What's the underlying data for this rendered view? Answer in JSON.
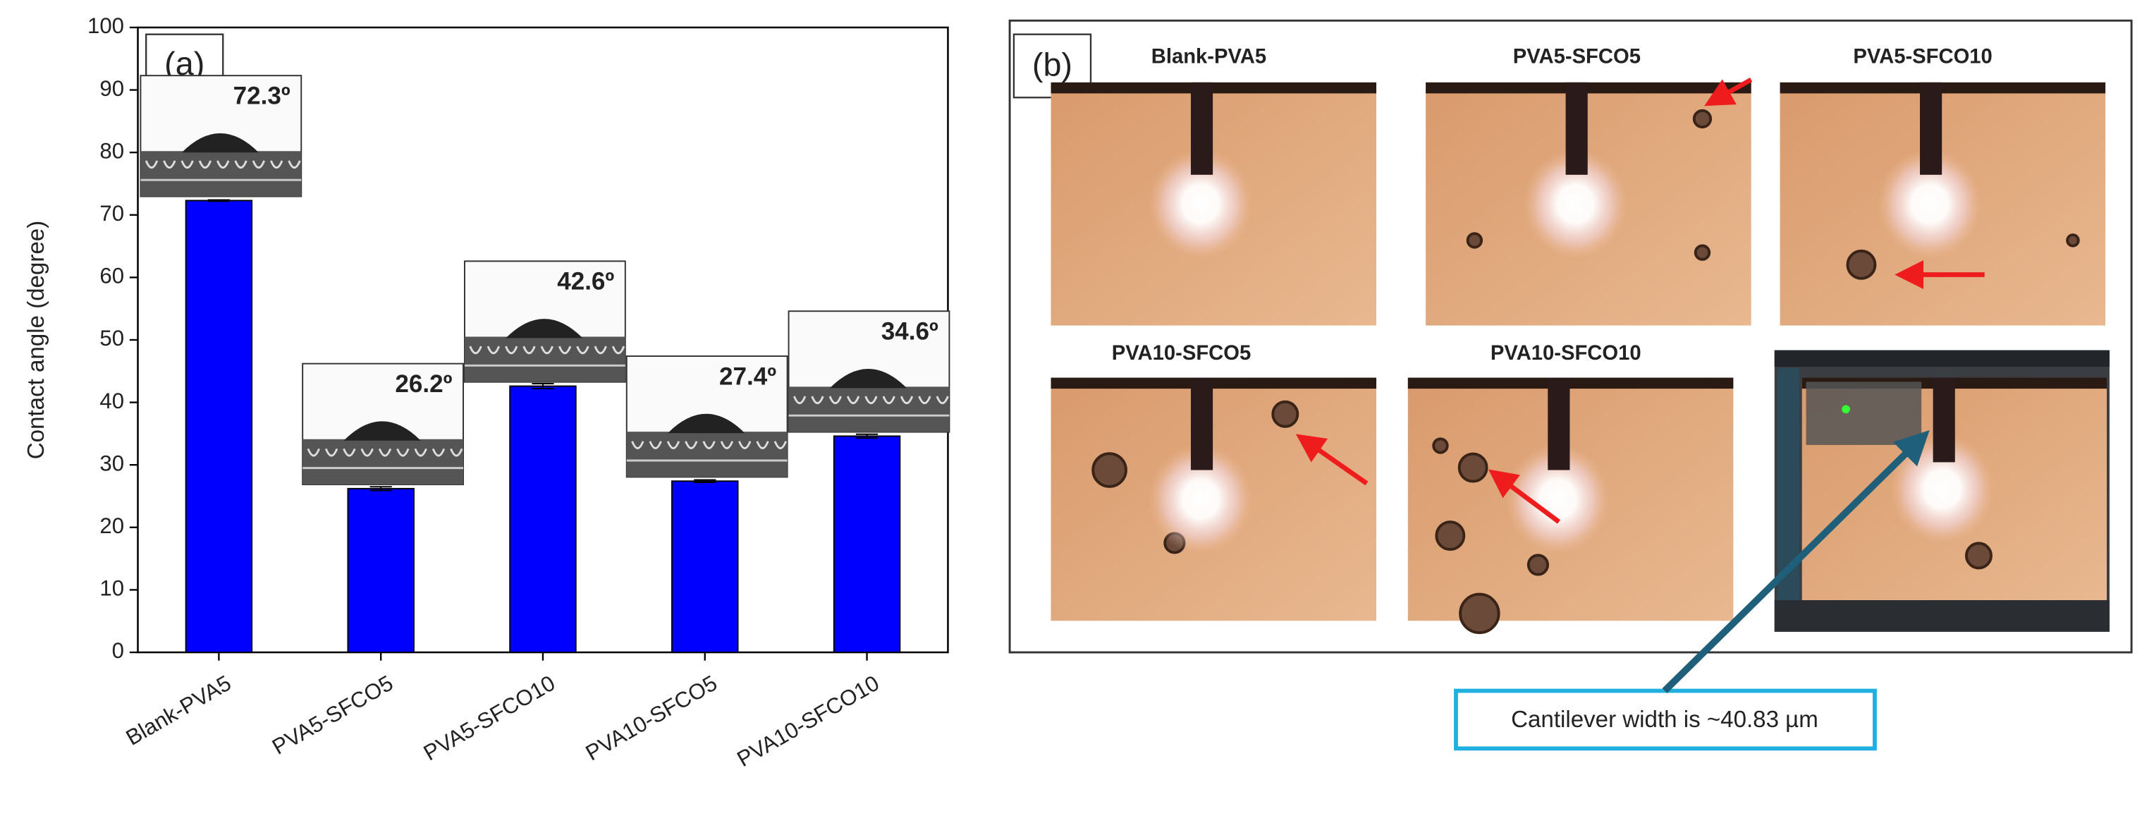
{
  "chart_data": {
    "type": "bar",
    "panel_label": "(a)",
    "y_label": "Contact angle (degree)",
    "categories": [
      "Blank-PVA5",
      "PVA5-SFCO5",
      "PVA5-SFCO10",
      "PVA10-SFCO5",
      "PVA10-SFCO10"
    ],
    "values": [
      72.3,
      26.2,
      42.6,
      27.4,
      34.6
    ],
    "value_labels": [
      "72.3º",
      "26.2º",
      "42.6º",
      "27.4º",
      "34.6º"
    ],
    "errors": [
      0.1,
      0.3,
      0.4,
      0.2,
      0.3
    ],
    "color": "#0000ff",
    "ylim": [
      0,
      100
    ],
    "yticks": [
      0,
      10,
      20,
      30,
      40,
      50,
      60,
      70,
      80,
      90,
      100
    ]
  },
  "panel_b": {
    "label": "(b)",
    "images": [
      "Blank-PVA5",
      "PVA5-SFCO5",
      "PVA5-SFCO10",
      "PVA10-SFCO5",
      "PVA10-SFCO10"
    ],
    "callout": "Cantilever width is ~40.83 µm"
  }
}
